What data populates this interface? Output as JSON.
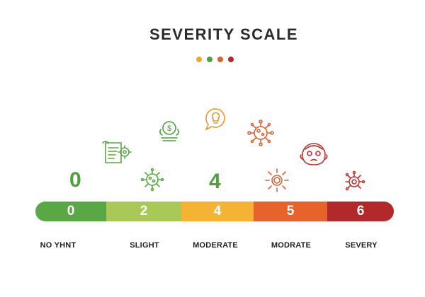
{
  "title": "SEVERITY SCALE",
  "accent_dots": [
    "#f0a630",
    "#4e9f3d",
    "#e0622b",
    "#b02a2a"
  ],
  "big_numbers": [
    {
      "value": "0",
      "color": "#4e9f3d"
    },
    {
      "value": "4",
      "color": "#4e9f3d"
    }
  ],
  "scale": [
    {
      "value": "0",
      "color": "#5aa845",
      "label": "NO YHNT"
    },
    {
      "value": "2",
      "color": "#a8c957",
      "label": "SLIGHT"
    },
    {
      "value": "4",
      "color": "#f5b233",
      "label": "MODERATE"
    },
    {
      "value": "5",
      "color": "#e8632c",
      "label": "MODRATE"
    },
    {
      "value": "6",
      "color": "#b3282a",
      "label": "SEVERY"
    }
  ],
  "icons": [
    {
      "name": "document-gear-icon",
      "color": "#5aa845"
    },
    {
      "name": "virus-icon",
      "color": "#5aa845"
    },
    {
      "name": "money-hand-icon",
      "color": "#4e9f3d"
    },
    {
      "name": "lightbulb-chat-icon",
      "color": "#e69a2e"
    },
    {
      "name": "virus-icon",
      "color": "#d9643a"
    },
    {
      "name": "sun-icon",
      "color": "#d9643a"
    },
    {
      "name": "face-icon",
      "color": "#c0332f"
    },
    {
      "name": "virus-target-icon",
      "color": "#c0332f"
    }
  ]
}
